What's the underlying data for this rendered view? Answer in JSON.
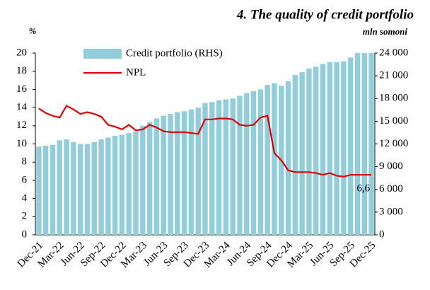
{
  "chart_data": {
    "type": "bar_line",
    "title": "4. The quality of credit portfolio",
    "y_label": "%",
    "y2_label": "mln somoni",
    "categories": [
      "Dec-21",
      null,
      null,
      "Mar-22",
      null,
      null,
      "Jun-22",
      null,
      null,
      "Sep-22",
      null,
      null,
      "Dec-22",
      null,
      null,
      "Mar-23",
      null,
      null,
      "Jun-23",
      null,
      null,
      "Sep-23",
      null,
      null,
      "Dec-23",
      null,
      null,
      "Mar-24",
      null,
      null,
      "Jun-24",
      null,
      null,
      "Sep-24",
      null,
      null,
      "Dec-24",
      null,
      null,
      "Mar-25",
      null,
      null,
      "Jun-25",
      null,
      null,
      "Sep-25",
      null,
      null,
      "Dec-25"
    ],
    "series": [
      {
        "name": "Credit portfolio (RHS)",
        "color": "#92cddc",
        "kind": "bar",
        "axis": "y2",
        "values": [
          11640,
          11760,
          11880,
          12480,
          12600,
          12240,
          12000,
          12000,
          12240,
          12600,
          12840,
          13080,
          13200,
          13440,
          13680,
          14400,
          14880,
          15360,
          15720,
          15960,
          16200,
          16320,
          16560,
          16800,
          17400,
          17520,
          17760,
          17880,
          18000,
          18360,
          18720,
          18960,
          19200,
          19800,
          20040,
          19680,
          20280,
          21120,
          21480,
          21960,
          22200,
          22560,
          22800,
          22800,
          22920,
          23400,
          24000,
          24000,
          24000
        ]
      },
      {
        "name": "NPL",
        "color": "#e00000",
        "kind": "line",
        "axis": "y",
        "values": [
          13.9,
          13.4,
          13.1,
          12.9,
          14.2,
          13.8,
          13.3,
          13.5,
          13.3,
          13.0,
          12.1,
          11.9,
          11.6,
          12.1,
          11.5,
          11.6,
          12.1,
          11.8,
          11.4,
          11.3,
          11.3,
          11.3,
          11.2,
          11.1,
          12.7,
          12.7,
          12.8,
          12.8,
          12.7,
          12.1,
          12.0,
          12.1,
          12.9,
          13.1,
          9.0,
          8.2,
          7.1,
          6.9,
          6.9,
          6.9,
          6.8,
          6.6,
          6.8,
          6.5,
          6.4,
          6.6,
          6.6,
          6.6,
          6.6
        ],
        "value_labels": [
          null,
          null,
          null,
          null,
          null,
          null,
          null,
          null,
          null,
          null,
          null,
          null,
          null,
          null,
          null,
          null,
          null,
          null,
          null,
          null,
          null,
          null,
          null,
          null,
          null,
          null,
          null,
          null,
          null,
          null,
          null,
          null,
          null,
          null,
          null,
          null,
          null,
          null,
          null,
          null,
          null,
          null,
          null,
          null,
          null,
          null,
          null,
          null,
          "6,6"
        ]
      }
    ],
    "ylim": [
      0,
      20
    ],
    "yticks": [
      0,
      2,
      4,
      6,
      8,
      10,
      12,
      14,
      16,
      18,
      20
    ],
    "y2lim": [
      0,
      24000
    ],
    "y2ticks": [
      0,
      {
        "value": 3000,
        "label": "3 000"
      },
      {
        "value": 6000,
        "label": "6 000"
      },
      {
        "value": 9000,
        "label": "9 000"
      },
      {
        "value": 12000,
        "label": "12 000"
      },
      {
        "value": 15000,
        "label": "15 000"
      },
      {
        "value": 18000,
        "label": "18 000"
      },
      {
        "value": 21000,
        "label": "21 000"
      },
      {
        "value": 24000,
        "label": "24 000"
      }
    ],
    "legend": "top-left"
  }
}
